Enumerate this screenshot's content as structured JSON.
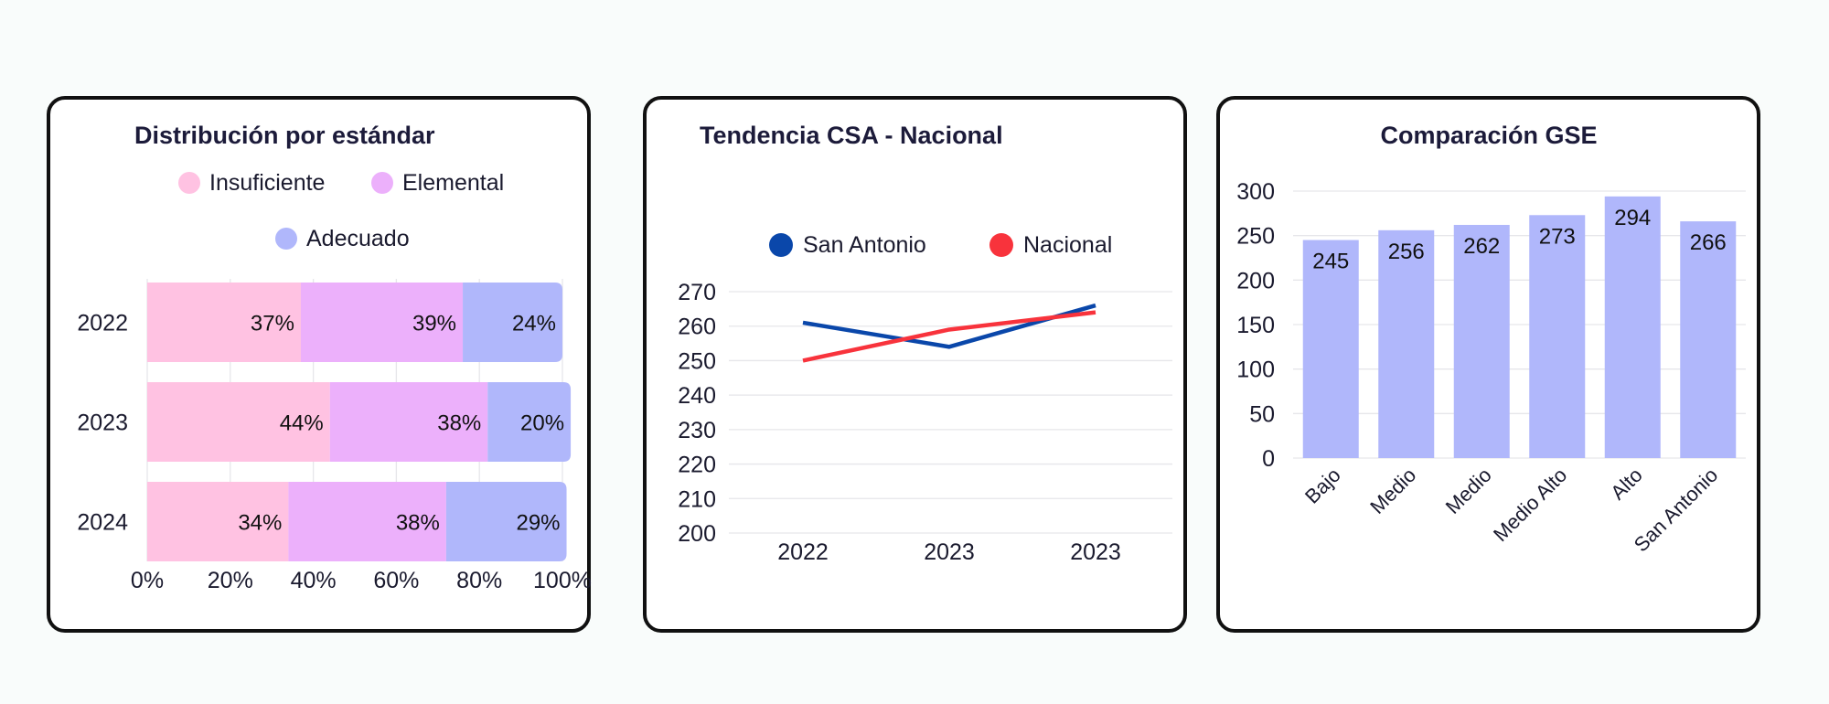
{
  "chart_data": [
    {
      "type": "bar",
      "orientation": "horizontal-stacked-100",
      "title": "Distribución por estándar",
      "categories": [
        "2022",
        "2023",
        "2024"
      ],
      "series": [
        {
          "name": "Insuficiente",
          "values": [
            37,
            44,
            34
          ],
          "labels": [
            "37%",
            "44%",
            "34%"
          ],
          "color": "#ffc2e2"
        },
        {
          "name": "Elemental",
          "values": [
            39,
            38,
            38
          ],
          "labels": [
            "39%",
            "38%",
            "38%"
          ],
          "color": "#ecb0fb"
        },
        {
          "name": "Adecuado",
          "values": [
            24,
            20,
            29
          ],
          "labels": [
            "24%",
            "20%",
            "29%"
          ],
          "color": "#b0b7fb"
        }
      ],
      "xlim": [
        0,
        100
      ],
      "xticks": [
        "0%",
        "20%",
        "40%",
        "60%",
        "80%",
        "100%"
      ],
      "legend_position": "top",
      "grid": true
    },
    {
      "type": "line",
      "title": "Tendencia CSA - Nacional",
      "x": [
        "2022",
        "2023",
        "2023"
      ],
      "series": [
        {
          "name": "San Antonio",
          "values": [
            261,
            254,
            266
          ],
          "color": "#0a47aa"
        },
        {
          "name": "Nacional",
          "values": [
            250,
            259,
            264
          ],
          "color": "#f8333c"
        }
      ],
      "ylim": [
        200,
        270
      ],
      "yticks": [
        "270",
        "260",
        "250",
        "240",
        "230",
        "220",
        "210",
        "200"
      ],
      "legend_position": "top",
      "grid": true
    },
    {
      "type": "bar",
      "title": "Comparación GSE",
      "categories": [
        "Bajo",
        "Medio",
        "Medio",
        "Medio Alto",
        "Alto",
        "San Antonio"
      ],
      "values": [
        245,
        256,
        262,
        273,
        294,
        266
      ],
      "value_labels": [
        "245",
        "256",
        "262",
        "273",
        "294",
        "266"
      ],
      "color": "#b0b7fb",
      "ylim": [
        0,
        300
      ],
      "yticks": [
        "300",
        "250",
        "200",
        "150",
        "100",
        "50",
        "0"
      ],
      "grid": true
    }
  ]
}
